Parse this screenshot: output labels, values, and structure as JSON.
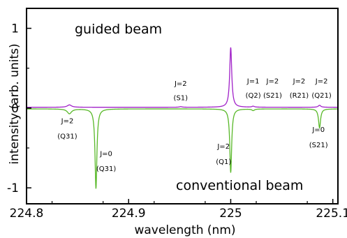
{
  "chart_data": {
    "type": "line",
    "title": "",
    "xlabel": "wavelength (nm)",
    "ylabel": "intensity (arb. units)",
    "xlim": [
      224.8,
      225.105
    ],
    "ylim": [
      -1.2,
      1.25
    ],
    "xticks": [
      224.8,
      224.9,
      225,
      225.1
    ],
    "xtick_labels": [
      "224.8",
      "224.9",
      "225",
      "225.1"
    ],
    "yticks": [
      1,
      0,
      -1
    ],
    "ytick_labels": [
      "1",
      "0",
      "-1"
    ],
    "grid": false,
    "series": [
      {
        "key": "guided",
        "color": "#a020c8",
        "baseline": 0.01,
        "features": [
          {
            "x": 224.842,
            "amp": 0.03,
            "width": 0.0025
          },
          {
            "x": 224.951,
            "amp": 0.008,
            "width": 0.0015
          },
          {
            "x": 225.0,
            "amp": 0.75,
            "width": 0.0012
          },
          {
            "x": 225.022,
            "amp": 0.012,
            "width": 0.0015
          },
          {
            "x": 225.087,
            "amp": 0.025,
            "width": 0.0015
          }
        ]
      },
      {
        "key": "conventional",
        "color": "#58b828",
        "baseline": -0.01,
        "features": [
          {
            "x": 224.842,
            "amp": -0.06,
            "width": 0.0025
          },
          {
            "x": 224.868,
            "amp": -1.0,
            "width": 0.0011
          },
          {
            "x": 225.0,
            "amp": -0.8,
            "width": 0.0011
          },
          {
            "x": 225.022,
            "amp": -0.02,
            "width": 0.0015
          },
          {
            "x": 225.087,
            "amp": -0.24,
            "width": 0.0012
          }
        ]
      }
    ],
    "panel_labels": {
      "guided": "guided beam",
      "conventional": "conventional beam"
    },
    "annotations": [
      {
        "key": "q31-j2-j",
        "text": "J=2",
        "x": 224.84,
        "y": -0.19
      },
      {
        "key": "q31-j2-b",
        "text": "(Q31)",
        "x": 224.84,
        "y": -0.38
      },
      {
        "key": "q31-j0-j",
        "text": "J=0",
        "x": 224.878,
        "y": -0.6
      },
      {
        "key": "q31-j0-b",
        "text": "(Q31)",
        "x": 224.878,
        "y": -0.79
      },
      {
        "key": "s1-j",
        "text": "J=2",
        "x": 224.951,
        "y": 0.28
      },
      {
        "key": "s1-b",
        "text": "(S1)",
        "x": 224.951,
        "y": 0.1
      },
      {
        "key": "q1-j",
        "text": "J=2",
        "x": 224.993,
        "y": -0.51
      },
      {
        "key": "q1-b",
        "text": "(Q1)",
        "x": 224.993,
        "y": -0.7
      },
      {
        "key": "q2-j",
        "text": "J=1",
        "x": 225.022,
        "y": 0.31
      },
      {
        "key": "q2-b",
        "text": "(Q2)",
        "x": 225.022,
        "y": 0.13
      },
      {
        "key": "s21a-j",
        "text": "J=2",
        "x": 225.041,
        "y": 0.31
      },
      {
        "key": "s21a-b",
        "text": "(S21)",
        "x": 225.041,
        "y": 0.13
      },
      {
        "key": "r21-j",
        "text": "J=2",
        "x": 225.067,
        "y": 0.31
      },
      {
        "key": "r21-b",
        "text": "(R21)",
        "x": 225.067,
        "y": 0.13
      },
      {
        "key": "q21-j",
        "text": "J=2",
        "x": 225.089,
        "y": 0.31
      },
      {
        "key": "q21-b",
        "text": "(Q21)",
        "x": 225.089,
        "y": 0.13
      },
      {
        "key": "s21b-j",
        "text": "J=0",
        "x": 225.086,
        "y": -0.3
      },
      {
        "key": "s21b-b",
        "text": "(S21)",
        "x": 225.086,
        "y": -0.49
      }
    ]
  }
}
